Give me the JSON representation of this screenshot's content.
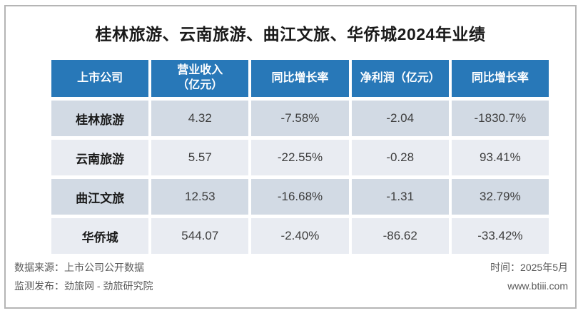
{
  "chart_data": {
    "type": "table",
    "title": "桂林旅游、云南旅游、曲江文旅、华侨城2024年业绩",
    "columns": [
      "上市公司",
      "营业收入（亿元）",
      "同比增长率",
      "净利润（亿元）",
      "同比增长率"
    ],
    "rows": [
      [
        "桂林旅游",
        "4.32",
        "-7.58%",
        "-2.04",
        "-1830.7%"
      ],
      [
        "云南旅游",
        "5.57",
        "-22.55%",
        "-0.28",
        "93.41%"
      ],
      [
        "曲江文旅",
        "12.53",
        "-16.68%",
        "-1.31",
        "32.79%"
      ],
      [
        "华侨城",
        "544.07",
        "-2.40%",
        "-86.62",
        "-33.42%"
      ]
    ],
    "units": "亿元",
    "legend_position": "none",
    "grid": false
  },
  "header_col1_lines": [
    "营业收入",
    "（亿元）"
  ],
  "footer": {
    "source_label": "数据来源：上市公司公开数据",
    "publisher_label": "监测发布：劲旅网 - 劲旅研究院",
    "date_label": "时间：2025年5月",
    "website": "www.btiii.com"
  },
  "colors": {
    "header_bg": "#2878b8",
    "header_text": "#ffffff",
    "row_odd_bg": "#d2dae4",
    "row_even_bg": "#e9ecf2",
    "card_border": "#b5b5b5",
    "footer_text": "#595959",
    "title_text": "#1a1a1a"
  }
}
